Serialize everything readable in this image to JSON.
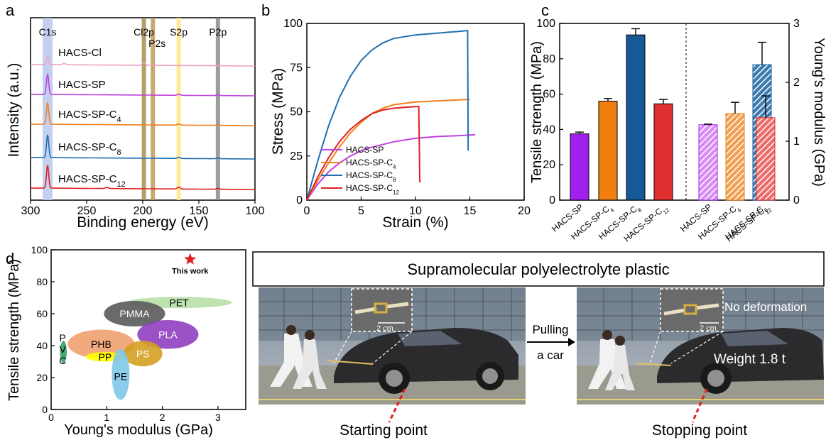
{
  "panel_letters": [
    "a",
    "b",
    "c",
    "d",
    "e"
  ],
  "colors": {
    "cl": "#f0a0c8",
    "sp": "#c040e0",
    "c4": "#f08020",
    "c8": "#1f6fb0",
    "c12": "#e02020",
    "purple_bar": "#a020f0",
    "orange_bar": "#f07f10",
    "blue_bar": "#155a96",
    "red_bar": "#e03030"
  },
  "chart_data": [
    {
      "type": "line",
      "panel": "a",
      "xlabel": "Binding energy (eV)",
      "ylabel": "Intensity (a.u.)",
      "xlim": [
        300,
        100
      ],
      "x_ticks": [
        300,
        250,
        200,
        150,
        100
      ],
      "peak_labels": [
        {
          "text": "C1s",
          "x": 284.8
        },
        {
          "text": "Cl2p",
          "x": 199
        },
        {
          "text": "P2s",
          "x": 191
        },
        {
          "text": "S2p",
          "x": 168
        },
        {
          "text": "P2p",
          "x": 133
        }
      ],
      "series": [
        {
          "name": "HACS-Cl",
          "peaks": [
            [
              284.8,
              0.35
            ],
            [
              270,
              0.06
            ],
            [
              199,
              0.12
            ]
          ]
        },
        {
          "name": "HACS-SP",
          "peaks": [
            [
              284.8,
              0.9
            ],
            [
              168,
              0.05
            ],
            [
              133,
              0.04
            ]
          ]
        },
        {
          "name": "HACS-SP-C",
          "sub": "4",
          "peaks": [
            [
              284.8,
              0.95
            ],
            [
              168,
              0.05
            ],
            [
              133,
              0.04
            ]
          ]
        },
        {
          "name": "HACS-SP-C",
          "sub": "8",
          "peaks": [
            [
              284.8,
              1.0
            ],
            [
              168,
              0.05
            ],
            [
              133,
              0.04
            ]
          ]
        },
        {
          "name": "HACS-SP-C",
          "sub": "12",
          "peaks": [
            [
              284.8,
              1.0
            ],
            [
              232,
              0.05
            ],
            [
              168,
              0.08
            ],
            [
              133,
              0.04
            ]
          ]
        }
      ]
    },
    {
      "type": "line",
      "panel": "b",
      "xlabel": "Strain (%)",
      "ylabel": "Stress (MPa)",
      "xlim": [
        0,
        20
      ],
      "ylim": [
        0,
        100
      ],
      "x_ticks": [
        0,
        5,
        10,
        15,
        20
      ],
      "y_ticks": [
        0,
        25,
        50,
        75,
        100
      ],
      "series": [
        {
          "name": "HACS-SP",
          "points": [
            [
              0,
              0
            ],
            [
              1,
              9
            ],
            [
              2,
              16
            ],
            [
              3,
              21
            ],
            [
              4,
              25
            ],
            [
              5,
              28
            ],
            [
              6,
              30
            ],
            [
              8,
              33
            ],
            [
              10,
              35
            ],
            [
              12,
              36
            ],
            [
              14,
              36.5
            ],
            [
              15.5,
              37
            ]
          ]
        },
        {
          "name": "HACS-SP-C",
          "sub": "4",
          "points": [
            [
              0,
              0
            ],
            [
              1,
              11
            ],
            [
              2,
              21
            ],
            [
              3,
              30
            ],
            [
              4,
              38
            ],
            [
              5,
              44
            ],
            [
              6,
              49
            ],
            [
              7,
              52
            ],
            [
              8,
              54
            ],
            [
              10,
              55.5
            ],
            [
              12,
              56.2
            ],
            [
              14,
              56.7
            ],
            [
              15,
              57
            ]
          ]
        },
        {
          "name": "HACS-SP-C",
          "sub": "8",
          "points": [
            [
              0,
              0
            ],
            [
              1,
              22
            ],
            [
              2,
              42
            ],
            [
              3,
              58
            ],
            [
              4,
              70
            ],
            [
              5,
              79
            ],
            [
              6,
              85
            ],
            [
              7,
              89
            ],
            [
              8,
              91.5
            ],
            [
              10,
              93.5
            ],
            [
              12,
              94.5
            ],
            [
              14,
              95.5
            ],
            [
              14.8,
              96
            ],
            [
              14.85,
              28
            ]
          ]
        },
        {
          "name": "HACS-SP-C",
          "sub": "12",
          "points": [
            [
              0,
              0
            ],
            [
              1,
              13
            ],
            [
              2,
              24
            ],
            [
              3,
              33
            ],
            [
              4,
              40
            ],
            [
              5,
              45
            ],
            [
              6,
              49
            ],
            [
              7,
              51
            ],
            [
              8,
              52
            ],
            [
              9,
              52.5
            ],
            [
              10.3,
              53
            ],
            [
              10.4,
              10
            ]
          ]
        }
      ]
    },
    {
      "type": "bar",
      "panel": "c",
      "ylabel": "Tensile strength (MPa)",
      "y2label": "Young's modulus (GPa)",
      "ylim": [
        0,
        100
      ],
      "y2lim": [
        0,
        3
      ],
      "y_ticks": [
        0,
        20,
        40,
        60,
        80,
        100
      ],
      "y2_ticks": [
        0,
        1,
        2,
        3
      ],
      "categories": [
        {
          "name": "HACS-SP"
        },
        {
          "name": "HACS-SP-C",
          "sub": "4"
        },
        {
          "name": "HACS-SP-C",
          "sub": "8"
        },
        {
          "name": "HACS-SP-C",
          "sub": "12"
        }
      ],
      "series": [
        {
          "name": "Tensile strength",
          "values": [
            37.5,
            56,
            93.5,
            54.5
          ],
          "errors": [
            1,
            1.5,
            3.5,
            2.5
          ]
        },
        {
          "name": "Young's modulus",
          "values": [
            1.28,
            1.47,
            2.3,
            1.4
          ],
          "errors": [
            0.01,
            0.19,
            0.38,
            0.37
          ]
        }
      ]
    },
    {
      "type": "scatter",
      "panel": "d",
      "xlabel": "Young's modulus (GPa)",
      "ylabel": "Tensile strength (MPa)",
      "xlim": [
        0,
        3.5
      ],
      "ylim": [
        0,
        100
      ],
      "x_ticks": [
        0,
        1,
        2,
        3
      ],
      "y_ticks": [
        0,
        20,
        40,
        60,
        80,
        100
      ],
      "regions": [
        {
          "label": "PET",
          "cx": 2.3,
          "cy": 67,
          "rx": 0.95,
          "ry": 3.5,
          "color": "#b8dfa8"
        },
        {
          "label": "PMMA",
          "cx": 1.5,
          "cy": 60,
          "rx": 0.55,
          "ry": 8,
          "color": "#5a5a5a"
        },
        {
          "label": "PLA",
          "cx": 2.1,
          "cy": 47,
          "rx": 0.55,
          "ry": 9,
          "color": "#8f3fc0"
        },
        {
          "label": "PHB",
          "cx": 0.9,
          "cy": 41,
          "rx": 0.6,
          "ry": 9,
          "color": "#f0a070"
        },
        {
          "label": "PP",
          "cx": 0.97,
          "cy": 33,
          "rx": 0.35,
          "ry": 3,
          "color": "#ffff00"
        },
        {
          "label": "PS",
          "cx": 1.65,
          "cy": 35,
          "rx": 0.35,
          "ry": 8,
          "color": "#d4a020"
        },
        {
          "label": "PE",
          "cx": 1.25,
          "cy": 22,
          "rx": 0.16,
          "ry": 16,
          "color": "#7ec8e8"
        },
        {
          "label": "PVC",
          "cx": 0.22,
          "cy": 36,
          "rx": 0.06,
          "ry": 7,
          "color": "#30a060"
        }
      ],
      "points": [
        {
          "label": "This work",
          "x": 2.5,
          "y": 94,
          "marker": "star",
          "color": "#e02020"
        }
      ]
    }
  ],
  "panel_e": {
    "title": "Supramolecular polyelectrolyte plastic",
    "arrow_top": "Pulling",
    "arrow_bottom": "a car",
    "scale_left": "2 cm",
    "scale_right": "2 cm",
    "no_deformation": "No deformation",
    "weight": "Weight 1.8 t",
    "start_caption": "Starting point",
    "stop_caption": "Stopping point"
  }
}
